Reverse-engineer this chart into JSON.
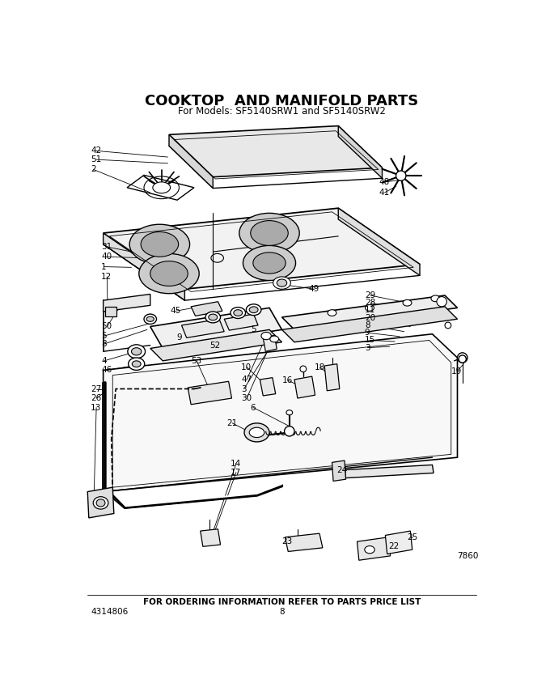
{
  "title": "COOKTOP  AND MANIFOLD PARTS",
  "subtitle": "For Models: SF5140SRW1 and SF5140SRW2",
  "footer_text": "FOR ORDERING INFORMATION REFER TO PARTS PRICE LIST",
  "part_number": "4314806",
  "page_number": "8",
  "doc_number": "7860",
  "background_color": "#ffffff",
  "title_fontsize": 14,
  "subtitle_fontsize": 8.5,
  "footer_fontsize": 7.5,
  "label_fontsize": 7.5,
  "figsize": [
    6.8,
    8.6
  ],
  "dpi": 100
}
